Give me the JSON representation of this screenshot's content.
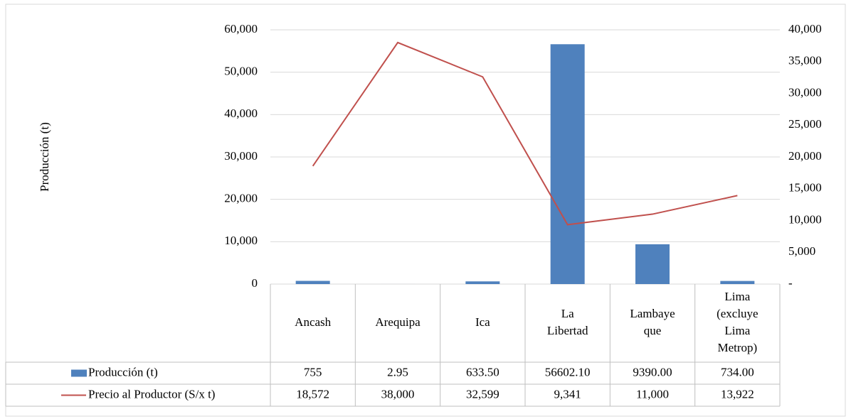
{
  "chart_data": {
    "type": "bar",
    "y_label": "Producción (t)",
    "categories": [
      "Ancash",
      "Arequipa",
      "Ica",
      "La\nLibertad",
      "Lambaye\nque",
      "Lima\n(excluye\nLima\nMetrop)"
    ],
    "series": [
      {
        "name": "Producción (t)",
        "type": "bar",
        "color": "#4f81bd",
        "values": [
          755,
          2.95,
          633.5,
          56602.1,
          9390,
          734
        ],
        "value_labels": [
          "755",
          "2.95",
          "633.50",
          "56602.10",
          "9390.00",
          "734.00"
        ]
      },
      {
        "name": "Precio al Productor (S/x t)",
        "type": "line",
        "axis": "y2",
        "color": "#c0504d",
        "values": [
          18572,
          38000,
          32599,
          9341,
          11000,
          13922
        ],
        "value_labels": [
          "18,572",
          "38,000",
          "32,599",
          "9,341",
          "11,000",
          "13,922"
        ]
      }
    ],
    "ylim": [
      0,
      60000
    ],
    "yticks": [
      0,
      {
        "value": 10000,
        "label": "10,000"
      },
      {
        "value": 20000,
        "label": "20,000"
      },
      {
        "value": 30000,
        "label": "30,000"
      },
      {
        "value": 40000,
        "label": "40,000"
      },
      {
        "value": 50000,
        "label": "50,000"
      },
      {
        "value": 60000,
        "label": "60,000"
      }
    ],
    "y2lim": [
      0,
      40000
    ],
    "y2ticks": [
      {
        "value": 0,
        "label": "-"
      },
      {
        "value": 5000,
        "label": "5,000"
      },
      {
        "value": 10000,
        "label": "10,000"
      },
      {
        "value": 15000,
        "label": "15,000"
      },
      {
        "value": 20000,
        "label": "20,000"
      },
      {
        "value": 25000,
        "label": "25,000"
      },
      {
        "value": 30000,
        "label": "30,000"
      },
      {
        "value": 35000,
        "label": "35,000"
      },
      {
        "value": 40000,
        "label": "40,000"
      }
    ],
    "grid": true,
    "data_table": true
  }
}
